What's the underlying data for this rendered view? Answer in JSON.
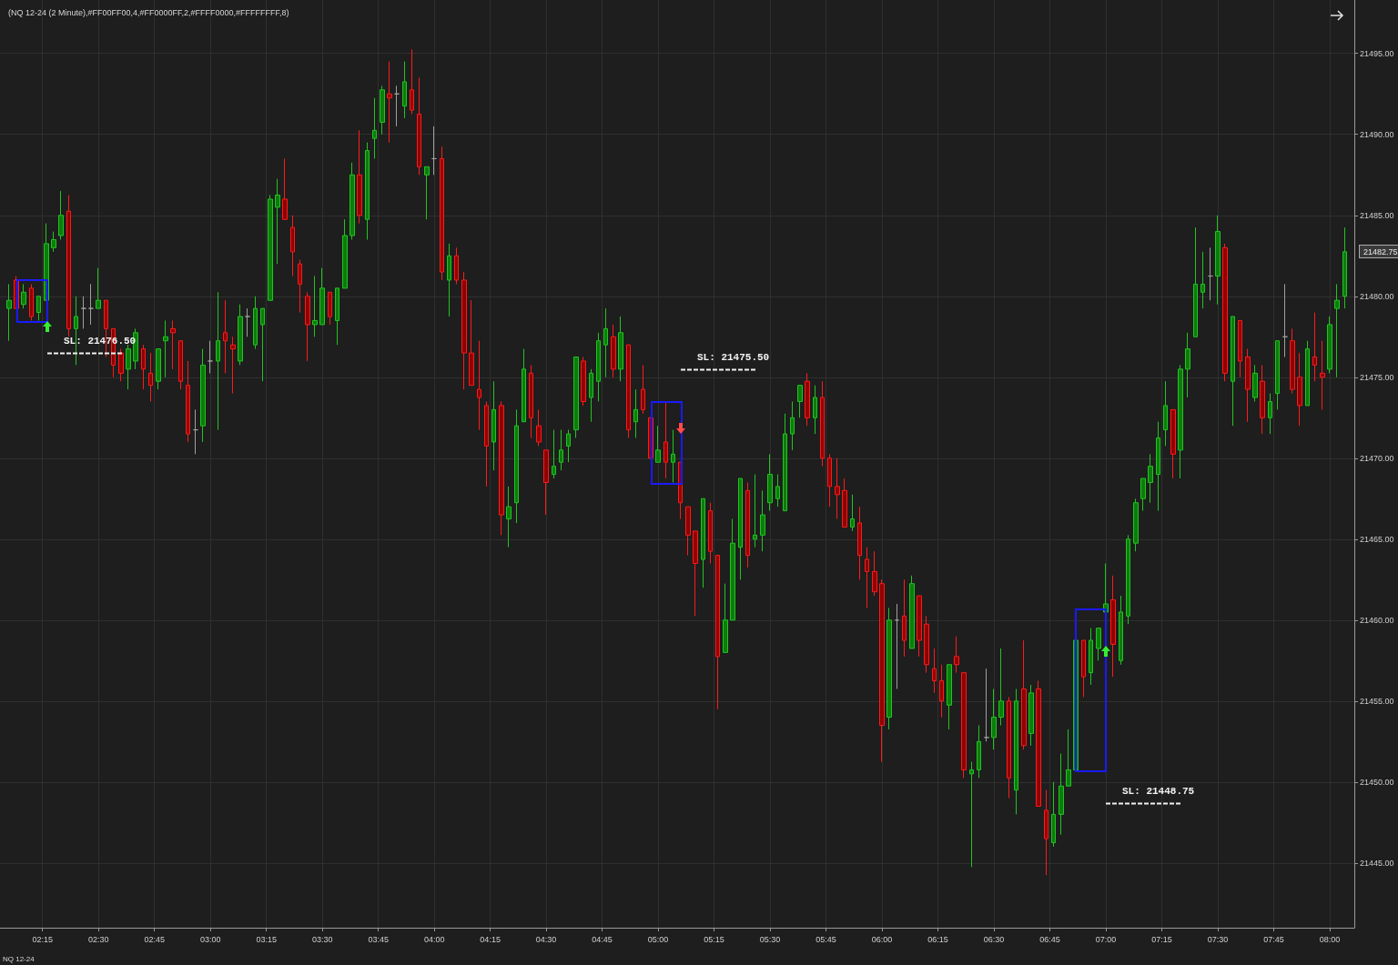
{
  "chart_data": {
    "type": "candlestick",
    "title": "(NQ 12-24 (2 Minute),#FF00FF00,4,#FF0000FF,2,#FFFF0000,#FFFFFFFF,8)",
    "x": [
      2.1,
      2.1333,
      2.1667,
      2.2,
      2.2333,
      2.2667,
      2.3,
      2.3333,
      2.3667,
      2.4,
      2.4333,
      2.4667,
      2.5,
      2.5333,
      2.5667,
      2.6,
      2.6333,
      2.6667,
      2.7,
      2.7333,
      2.7667,
      2.8,
      2.8333,
      2.8667,
      2.9,
      2.9333,
      2.9667,
      3.0,
      3.0333,
      3.0667,
      3.1,
      3.1333,
      3.1667,
      3.2,
      3.2333,
      3.2667,
      3.3,
      3.3333,
      3.3667,
      3.4,
      3.4333,
      3.4667,
      3.5,
      3.5333,
      3.5667,
      3.6,
      3.6333,
      3.6667,
      3.7,
      3.7333,
      3.7667,
      3.8,
      3.8333,
      3.8667,
      3.9,
      3.9333,
      3.9667,
      4.0,
      4.0333,
      4.0667,
      4.1,
      4.1333,
      4.1667,
      4.2,
      4.2333,
      4.2667,
      4.3,
      4.3333,
      4.3667,
      4.4,
      4.4333,
      4.4667,
      4.5,
      4.5333,
      4.5667,
      4.6,
      4.6333,
      4.6667,
      4.7,
      4.7333,
      4.7667,
      4.8,
      4.8333,
      4.8667,
      4.9,
      4.9333,
      4.9667,
      5.0,
      5.0333,
      5.0667,
      5.1,
      5.1333,
      5.1667,
      5.2,
      5.2333,
      5.2667,
      5.3,
      5.3333,
      5.3667,
      5.4,
      5.4333,
      5.4667,
      5.5,
      5.5333,
      5.5667,
      5.6,
      5.6333,
      5.6667,
      5.7,
      5.7333,
      5.7667,
      5.8,
      5.8333,
      5.8667,
      5.9,
      5.9333,
      5.9667,
      6.0,
      6.0333,
      6.0667,
      6.1,
      6.1333,
      6.1667,
      6.2,
      6.2333,
      6.2667,
      6.3,
      6.3333,
      6.3667,
      6.4,
      6.4333,
      6.4667,
      6.5,
      6.5333,
      6.5667,
      6.6,
      6.6333,
      6.6667,
      6.7,
      6.7333,
      6.7667,
      6.8,
      6.8333,
      6.8667,
      6.9,
      6.9333,
      6.9667,
      7.0,
      7.0333,
      7.0667,
      7.1,
      7.1333,
      7.1667,
      7.2,
      7.2333,
      7.2667,
      7.3,
      7.3333,
      7.3667,
      7.4,
      7.4333,
      7.4667,
      7.5,
      7.5333,
      7.5667,
      7.6,
      7.6333,
      7.6667,
      7.7,
      7.7333,
      7.7667,
      7.8,
      7.8333,
      7.8667,
      7.9,
      7.9333,
      7.9667,
      8.0,
      8.0333,
      8.0667
    ],
    "ohlc": [
      [
        21479.25,
        21480.75,
        21477.25,
        21479.75
      ],
      [
        21481,
        21481.25,
        21479.25,
        21479.25
      ],
      [
        21479.5,
        21480.75,
        21479.25,
        21480.25
      ],
      [
        21480.5,
        21480.75,
        21478.5,
        21478.75
      ],
      [
        21479,
        21480,
        21478.5,
        21480
      ],
      [
        21479.75,
        21484.5,
        21479.75,
        21483.25
      ],
      [
        21483,
        21484,
        21482.75,
        21483.5
      ],
      [
        21483.75,
        21486.5,
        21483.5,
        21485
      ],
      [
        21485.25,
        21486.25,
        21477.5,
        21478
      ],
      [
        21478,
        21480,
        21475.75,
        21478.75
      ],
      [
        21479.25,
        21480,
        21478,
        21479.25
      ],
      [
        21479.25,
        21480.75,
        21478.25,
        21479.25
      ],
      [
        21479.25,
        21481.75,
        21479.25,
        21479.75
      ],
      [
        21479.75,
        21479.75,
        21476.25,
        21478
      ],
      [
        21478,
        21478,
        21475,
        21475.75
      ],
      [
        21476.5,
        21476.75,
        21474.75,
        21475.25
      ],
      [
        21475.5,
        21477,
        21474.25,
        21476.75
      ],
      [
        21476,
        21478,
        21475.5,
        21477.75
      ],
      [
        21476.75,
        21477,
        21474.25,
        21475.5
      ],
      [
        21475.25,
        21476.5,
        21473.5,
        21474.5
      ],
      [
        21474.75,
        21476.75,
        21474.25,
        21476.75
      ],
      [
        21477.25,
        21478.5,
        21475,
        21477.5
      ],
      [
        21478,
        21478.5,
        21475.5,
        21477.75
      ],
      [
        21477.25,
        21477.25,
        21474.25,
        21474.75
      ],
      [
        21474.5,
        21476,
        21471,
        21471.5
      ],
      [
        21471.75,
        21473,
        21470.25,
        21471.75
      ],
      [
        21472,
        21476.75,
        21471,
        21475.75
      ],
      [
        21476,
        21477.25,
        21475.25,
        21476
      ],
      [
        21476,
        21480.25,
        21471.75,
        21477.25
      ],
      [
        21477.75,
        21479.75,
        21475.25,
        21477.25
      ],
      [
        21477,
        21477.5,
        21474,
        21476.75
      ],
      [
        21476,
        21479.5,
        21475.75,
        21478.75
      ],
      [
        21478.75,
        21479.25,
        21477.5,
        21478.75
      ],
      [
        21477,
        21480,
        21476.75,
        21479.25
      ],
      [
        21478.25,
        21479.25,
        21474.75,
        21479.25
      ],
      [
        21479.75,
        21486.25,
        21479.75,
        21486
      ],
      [
        21485.5,
        21487.25,
        21482,
        21486.25
      ],
      [
        21486,
        21488.5,
        21484.75,
        21484.75
      ],
      [
        21484.25,
        21485,
        21481.25,
        21482.75
      ],
      [
        21482,
        21482.25,
        21479,
        21480.75
      ],
      [
        21480,
        21480.25,
        21476,
        21478.25
      ],
      [
        21478.25,
        21481.25,
        21477.5,
        21478.5
      ],
      [
        21478.25,
        21481.75,
        21478.25,
        21480.5
      ],
      [
        21480.25,
        21480.25,
        21478.25,
        21478.75
      ],
      [
        21478.5,
        21480.5,
        21477,
        21480.5
      ],
      [
        21480.5,
        21484.75,
        21480.5,
        21483.75
      ],
      [
        21483.75,
        21488.25,
        21483.5,
        21487.5
      ],
      [
        21487.5,
        21490.25,
        21484.5,
        21485
      ],
      [
        21484.75,
        21489.5,
        21483.5,
        21489
      ],
      [
        21489.75,
        21492.25,
        21488.5,
        21490.25
      ],
      [
        21490.75,
        21493,
        21490,
        21492.75
      ],
      [
        21492.5,
        21494.5,
        21489.5,
        21492.25
      ],
      [
        21492.5,
        21493,
        21490.5,
        21492.5
      ],
      [
        21491.75,
        21494.5,
        21491,
        21493.25
      ],
      [
        21492.75,
        21495.25,
        21491.25,
        21491.5
      ],
      [
        21491.25,
        21493.5,
        21487.5,
        21488
      ],
      [
        21487.5,
        21488,
        21484.75,
        21488
      ],
      [
        21488.5,
        21490.5,
        21487.5,
        21488.5
      ],
      [
        21488.5,
        21489.25,
        21481,
        21481.5
      ],
      [
        21481,
        21483.25,
        21478.75,
        21482.5
      ],
      [
        21482.5,
        21483,
        21480.75,
        21481
      ],
      [
        21481,
        21481.5,
        21474.25,
        21476.5
      ],
      [
        21476.5,
        21479.75,
        21474.5,
        21474.5
      ],
      [
        21474.25,
        21477.25,
        21471.75,
        21473.75
      ],
      [
        21473.25,
        21473.5,
        21468.25,
        21470.75
      ],
      [
        21471,
        21474.75,
        21469.25,
        21473
      ],
      [
        21473.25,
        21473.5,
        21465.25,
        21466.5
      ],
      [
        21466.25,
        21468.25,
        21464.5,
        21467
      ],
      [
        21467.25,
        21473,
        21466,
        21472
      ],
      [
        21472.25,
        21476.75,
        21472.25,
        21475.5
      ],
      [
        21475.25,
        21475.75,
        21471.25,
        21472.5
      ],
      [
        21472,
        21473,
        21470.75,
        21471
      ],
      [
        21470.5,
        21470.5,
        21466.5,
        21468.5
      ],
      [
        21469,
        21471.75,
        21468.75,
        21469.5
      ],
      [
        21469.75,
        21471.75,
        21469.25,
        21470.5
      ],
      [
        21470.75,
        21471.75,
        21469.75,
        21471.5
      ],
      [
        21471.75,
        21476.25,
        21471.25,
        21476.25
      ],
      [
        21476,
        21476.25,
        21473.25,
        21473.5
      ],
      [
        21473.75,
        21475.5,
        21472.25,
        21475.25
      ],
      [
        21474.75,
        21477.75,
        21473.5,
        21477.25
      ],
      [
        21477,
        21479.25,
        21475,
        21478
      ],
      [
        21477.5,
        21478.25,
        21475,
        21475.5
      ],
      [
        21475.5,
        21478.75,
        21474.75,
        21477.75
      ],
      [
        21477,
        21477,
        21471.25,
        21471.75
      ],
      [
        21472.25,
        21474.25,
        21471.25,
        21473
      ],
      [
        21474.25,
        21475.75,
        21472.75,
        21473
      ],
      [
        21472.5,
        21472.5,
        21470,
        21470
      ],
      [
        21469.75,
        21472,
        21469.75,
        21470.5
      ],
      [
        21471,
        21473.5,
        21468.75,
        21469.75
      ],
      [
        21469.75,
        21471.75,
        21468.5,
        21470.25
      ],
      [
        21469.75,
        21469.75,
        21466.25,
        21467.25
      ],
      [
        21467,
        21467,
        21464,
        21465.25
      ],
      [
        21465.5,
        21465.5,
        21460.25,
        21463.5
      ],
      [
        21463.75,
        21467.5,
        21462,
        21467.5
      ],
      [
        21466.75,
        21467.25,
        21463.5,
        21464.25
      ],
      [
        21464,
        21464,
        21454.5,
        21457.75
      ],
      [
        21458,
        21462.25,
        21458,
        21460
      ],
      [
        21460,
        21466.25,
        21460,
        21464.75
      ],
      [
        21464.5,
        21468.75,
        21462.5,
        21468.75
      ],
      [
        21468,
        21468.5,
        21463.25,
        21464
      ],
      [
        21465,
        21469,
        21464.5,
        21465.25
      ],
      [
        21465.25,
        21468,
        21464.25,
        21466.5
      ],
      [
        21467.25,
        21470.25,
        21466.75,
        21469
      ],
      [
        21467.5,
        21469,
        21467,
        21468.25
      ],
      [
        21466.75,
        21472.75,
        21466.75,
        21471.5
      ],
      [
        21471.5,
        21473.5,
        21470.5,
        21472.5
      ],
      [
        21473.5,
        21474.5,
        21472.5,
        21474.5
      ],
      [
        21474.75,
        21475.25,
        21472,
        21472.5
      ],
      [
        21472.5,
        21474.5,
        21471.5,
        21473.75
      ],
      [
        21473.75,
        21474.75,
        21469.5,
        21470
      ],
      [
        21470,
        21470.25,
        21467,
        21468.25
      ],
      [
        21468.25,
        21470,
        21466.25,
        21467.75
      ],
      [
        21468,
        21468.75,
        21465.75,
        21465.75
      ],
      [
        21465.75,
        21467.75,
        21465.5,
        21466.25
      ],
      [
        21466,
        21467,
        21462.5,
        21464
      ],
      [
        21463.75,
        21464.5,
        21460.75,
        21463
      ],
      [
        21463,
        21464.25,
        21461.5,
        21461.75
      ],
      [
        21462.25,
        21462.5,
        21451.25,
        21453.5
      ],
      [
        21454,
        21460.75,
        21453.25,
        21460
      ],
      [
        21460,
        21461,
        21455.75,
        21460
      ],
      [
        21460.25,
        21462.5,
        21457.75,
        21458.75
      ],
      [
        21458.25,
        21462.75,
        21458.25,
        21462.25
      ],
      [
        21461.5,
        21461.5,
        21457.75,
        21458.75
      ],
      [
        21459.75,
        21460.25,
        21456.75,
        21457.25
      ],
      [
        21457,
        21458.25,
        21455.5,
        21456.25
      ],
      [
        21456.25,
        21457.25,
        21454,
        21455
      ],
      [
        21454.75,
        21457.25,
        21453.25,
        21457.25
      ],
      [
        21457.75,
        21459,
        21456.75,
        21457.25
      ],
      [
        21456.75,
        21456.75,
        21450.25,
        21450.75
      ],
      [
        21450.5,
        21451.25,
        21444.75,
        21450.75
      ],
      [
        21450.75,
        21453.5,
        21450.25,
        21452.5
      ],
      [
        21452.75,
        21457,
        21452.5,
        21452.75
      ],
      [
        21452.75,
        21455.75,
        21452,
        21454
      ],
      [
        21454,
        21458.25,
        21453.5,
        21455
      ],
      [
        21455,
        21455.25,
        21449,
        21450.25
      ],
      [
        21449.5,
        21455.75,
        21448,
        21455
      ],
      [
        21455.75,
        21458.75,
        21452,
        21452.25
      ],
      [
        21453,
        21456,
        21452.25,
        21455.5
      ],
      [
        21455.75,
        21456.25,
        21448.5,
        21448.5
      ],
      [
        21448.25,
        21449.5,
        21444.25,
        21446.5
      ],
      [
        21446.25,
        21450,
        21446,
        21448
      ],
      [
        21448,
        21451.75,
        21446.75,
        21449.75
      ],
      [
        21449.75,
        21453.25,
        21449.75,
        21450.75
      ],
      [
        21450.75,
        21458.75,
        21450.75,
        21458.75
      ],
      [
        21458.75,
        21458.75,
        21455.25,
        21456.5
      ],
      [
        21456.75,
        21459.5,
        21456,
        21458.75
      ],
      [
        21458.25,
        21459.5,
        21457.5,
        21459.5
      ],
      [
        21460.5,
        21463.5,
        21460.5,
        21461
      ],
      [
        21461.25,
        21462.75,
        21456.5,
        21458.5
      ],
      [
        21457.5,
        21461.5,
        21457.25,
        21460.5
      ],
      [
        21460.25,
        21465.25,
        21459.75,
        21465
      ],
      [
        21464.75,
        21467.5,
        21464.25,
        21467.25
      ],
      [
        21467.5,
        21468.75,
        21466.75,
        21468.75
      ],
      [
        21468.5,
        21470.25,
        21467.25,
        21469.5
      ],
      [
        21469,
        21472.25,
        21466.75,
        21471.25
      ],
      [
        21471.75,
        21474.75,
        21470.75,
        21473.25
      ],
      [
        21473,
        21473,
        21468.75,
        21470.25
      ],
      [
        21470.5,
        21475.75,
        21468.75,
        21475.5
      ],
      [
        21475.5,
        21477.75,
        21473.75,
        21476.75
      ],
      [
        21477.5,
        21484.25,
        21477.5,
        21480.75
      ],
      [
        21480.25,
        21482.75,
        21479.25,
        21480.75
      ],
      [
        21481.25,
        21483,
        21479.75,
        21481.25
      ],
      [
        21481.25,
        21485,
        21479.5,
        21484
      ],
      [
        21483,
        21483.25,
        21474.75,
        21475.25
      ],
      [
        21474.75,
        21478.75,
        21472,
        21478.75
      ],
      [
        21478.5,
        21478.5,
        21475,
        21476
      ],
      [
        21476.25,
        21476.75,
        21472.25,
        21474.25
      ],
      [
        21473.75,
        21475.75,
        21473.5,
        21475.25
      ],
      [
        21474.75,
        21475.75,
        21471.5,
        21472.5
      ],
      [
        21472.5,
        21474,
        21471.5,
        21473.5
      ],
      [
        21474,
        21477.25,
        21473,
        21477.25
      ],
      [
        21477.5,
        21480.75,
        21476.25,
        21477.5
      ],
      [
        21477.25,
        21478,
        21474,
        21474.25
      ],
      [
        21475,
        21476.5,
        21472,
        21473.25
      ],
      [
        21473.25,
        21477.25,
        21473.25,
        21476.75
      ],
      [
        21476.25,
        21479,
        21474.75,
        21475.75
      ],
      [
        21475.25,
        21477.25,
        21473,
        21475
      ],
      [
        21475.5,
        21478.75,
        21475.25,
        21478.25
      ],
      [
        21479.25,
        21480.75,
        21475,
        21479.75
      ],
      [
        21480,
        21484.25,
        21479.25,
        21482.75
      ]
    ],
    "xlim": [
      2.06,
      8.11
    ],
    "xticks": [
      {
        "value": 2.25,
        "label": "02:15"
      },
      {
        "value": 2.5,
        "label": "02:30"
      },
      {
        "value": 2.75,
        "label": "02:45"
      },
      {
        "value": 3,
        "label": "03:00"
      },
      {
        "value": 3.25,
        "label": "03:15"
      },
      {
        "value": 3.5,
        "label": "03:30"
      },
      {
        "value": 3.75,
        "label": "03:45"
      },
      {
        "value": 4,
        "label": "04:00"
      },
      {
        "value": 4.25,
        "label": "04:15"
      },
      {
        "value": 4.5,
        "label": "04:30"
      },
      {
        "value": 4.75,
        "label": "04:45"
      },
      {
        "value": 5,
        "label": "05:00"
      },
      {
        "value": 5.25,
        "label": "05:15"
      },
      {
        "value": 5.5,
        "label": "05:30"
      },
      {
        "value": 5.75,
        "label": "05:45"
      },
      {
        "value": 6,
        "label": "06:00"
      },
      {
        "value": 6.25,
        "label": "06:15"
      },
      {
        "value": 6.5,
        "label": "06:30"
      },
      {
        "value": 6.75,
        "label": "06:45"
      },
      {
        "value": 7,
        "label": "07:00"
      },
      {
        "value": 7.25,
        "label": "07:15"
      },
      {
        "value": 7.5,
        "label": "07:30"
      },
      {
        "value": 7.75,
        "label": "07:45"
      },
      {
        "value": 8,
        "label": "08:00"
      }
    ],
    "ylim": [
      21441,
      21498.3
    ],
    "yticks": [
      {
        "value": 21445,
        "label": "21445.00"
      },
      {
        "value": 21450,
        "label": "21450.00"
      },
      {
        "value": 21455,
        "label": "21455.00"
      },
      {
        "value": 21460,
        "label": "21460.00"
      },
      {
        "value": 21465,
        "label": "21465.00"
      },
      {
        "value": 21470,
        "label": "21470.00"
      },
      {
        "value": 21475,
        "label": "21475.00"
      },
      {
        "value": 21480,
        "label": "21480.00"
      },
      {
        "value": 21485,
        "label": "21485.00"
      },
      {
        "value": 21490,
        "label": "21490.00"
      },
      {
        "value": 21495,
        "label": "21495.00"
      }
    ],
    "annotations": [
      "SL: 21476.50",
      "SL: 21475.50",
      "SL: 21448.75",
      "21482.75",
      "NQ 12-24"
    ],
    "grid": true
  }
}
